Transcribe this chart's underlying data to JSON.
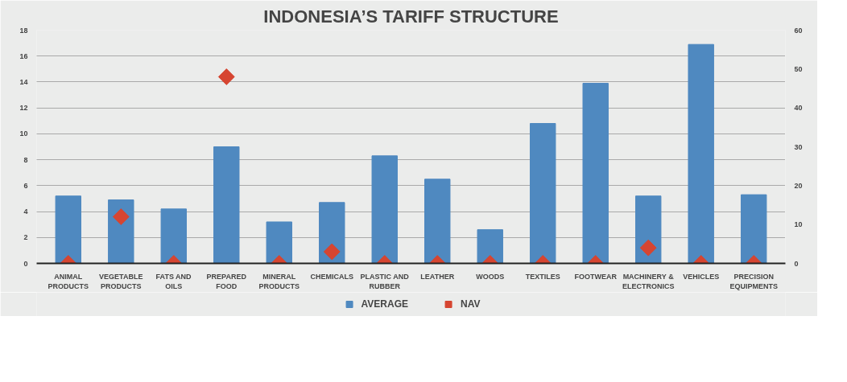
{
  "chart_data": {
    "type": "bar",
    "title": "INDONESIA’S TARIFF STRUCTURE",
    "categories": [
      "ANIMAL PRODUCTS",
      "VEGETABLE PRODUCTS",
      "FATS AND OILS",
      "PREPARED FOOD",
      "MINERAL PRODUCTS",
      "CHEMICALS",
      "PLASTIC AND RUBBER",
      "LEATHER",
      "WOODS",
      "TEXTILES",
      "FOOTWEAR",
      "MACHINERY & ELECTRONICS",
      "VEHICLES",
      "PRECISION EQUIPMENTS"
    ],
    "series": [
      {
        "name": "AVERAGE",
        "color": "#4f89c0",
        "values": [
          5.2,
          4.9,
          4.2,
          9.0,
          3.2,
          4.7,
          8.3,
          6.5,
          2.6,
          10.8,
          13.9,
          5.2,
          16.9,
          5.3
        ]
      },
      {
        "name": "NAV",
        "type": "scatter",
        "axis": "y2",
        "color": "#d64531",
        "values": [
          0,
          12,
          0,
          48,
          0,
          3,
          0,
          0,
          0,
          0,
          0,
          4,
          0,
          0
        ]
      }
    ],
    "marker": "diamond",
    "ylim": [
      0,
      18
    ],
    "yticks": [
      0,
      2,
      4,
      6,
      8,
      10,
      12,
      14,
      16,
      18
    ],
    "y2lim": [
      0,
      60
    ],
    "y2ticks": [
      0,
      10,
      20,
      30,
      40,
      50,
      60
    ],
    "grid": "y",
    "legend": "bottom"
  }
}
